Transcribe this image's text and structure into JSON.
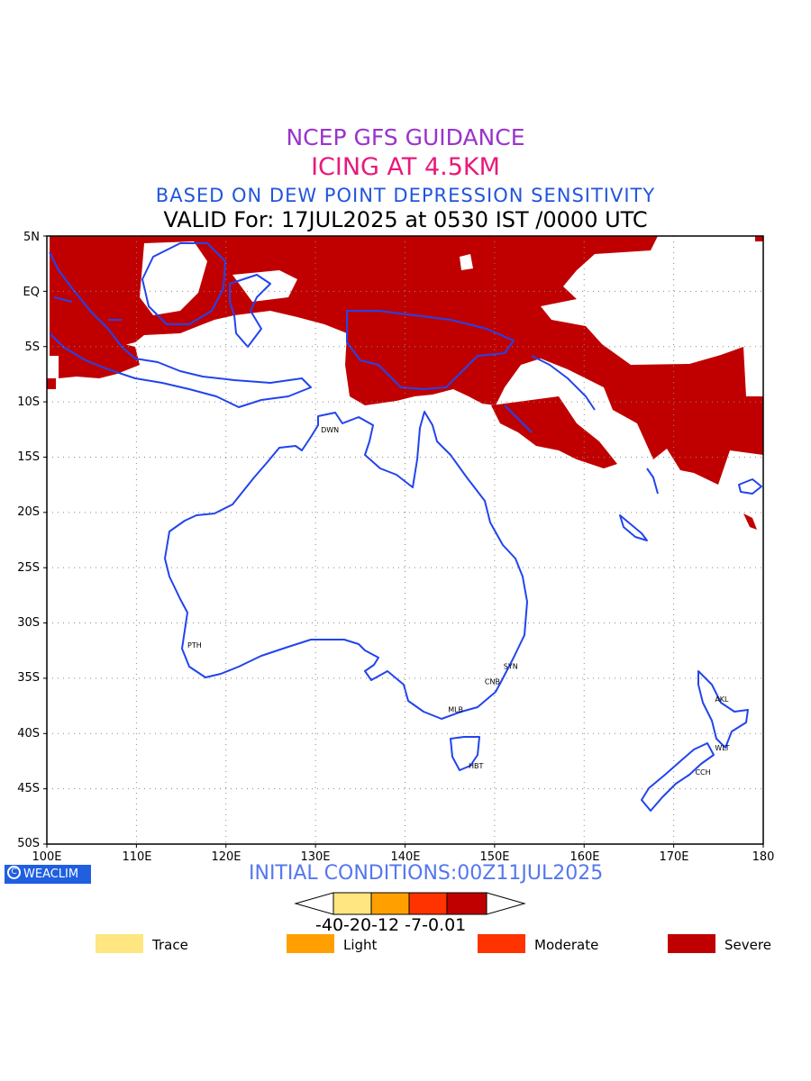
{
  "titles": {
    "line1": "NCEP GFS GUIDANCE",
    "line2": "ICING AT 4.5KM",
    "line3": "BASED ON DEW POINT DEPRESSION SENSITIVITY",
    "line4": "VALID For: 17JUL2025 at 0530 IST /0000 UTC"
  },
  "axes": {
    "lat_labels": [
      "5N",
      "EQ",
      "5S",
      "10S",
      "15S",
      "20S",
      "25S",
      "30S",
      "35S",
      "40S",
      "45S",
      "50S"
    ],
    "lon_labels": [
      "100E",
      "110E",
      "120E",
      "130E",
      "140E",
      "150E",
      "160E",
      "170E",
      "180"
    ],
    "lat_range": [
      -50,
      5
    ],
    "lon_range": [
      100,
      180
    ],
    "grid": "dotted"
  },
  "cities": [
    {
      "code": "DWN"
    },
    {
      "code": "PTH"
    },
    {
      "code": "SYN"
    },
    {
      "code": "CNB"
    },
    {
      "code": "MLB"
    },
    {
      "code": "HBT"
    },
    {
      "code": "AKL"
    },
    {
      "code": "WLT"
    },
    {
      "code": "CCH"
    }
  ],
  "logo": {
    "text": "WEACLIM",
    "symbol": "C"
  },
  "initial_conditions": "INITIAL CONDITIONS:00Z11JUL2025",
  "colorbar": {
    "colors": [
      "#ffe680",
      "#ffa000",
      "#ff3300",
      "#c00000"
    ],
    "labels_text": "-40-20-12 -7-0.01"
  },
  "legend": [
    {
      "label": "Trace",
      "color": "#ffe680"
    },
    {
      "label": "Light",
      "color": "#ffa000"
    },
    {
      "label": "Moderate",
      "color": "#ff3300"
    },
    {
      "label": "Severe",
      "color": "#c00000"
    }
  ],
  "colors": {
    "coastline": "#2244ee",
    "severe": "#c00000"
  }
}
